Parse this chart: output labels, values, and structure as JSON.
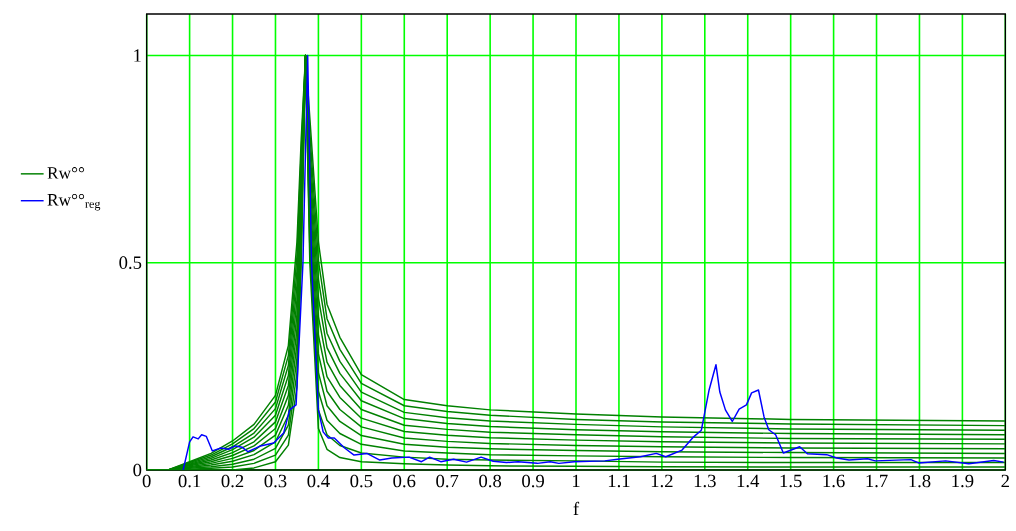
{
  "chart_data": {
    "type": "line",
    "xlabel": "f",
    "xlim": [
      0,
      2
    ],
    "ylim": [
      0,
      1.1
    ],
    "xticks": [
      0,
      0.1,
      0.2,
      0.3,
      0.4,
      0.5,
      0.6,
      0.7,
      0.8,
      0.9,
      1,
      1.1,
      1.2,
      1.3,
      1.4,
      1.5,
      1.6,
      1.7,
      1.8,
      1.9,
      2
    ],
    "yticks": [
      0,
      0.5,
      1
    ],
    "grid": true,
    "legend": "left",
    "x": [
      0,
      0.05,
      0.1,
      0.15,
      0.2,
      0.25,
      0.3,
      0.33,
      0.35,
      0.36,
      0.37,
      0.38,
      0.4,
      0.42,
      0.45,
      0.5,
      0.6,
      0.7,
      0.8,
      1.0,
      1.2,
      1.5,
      2.0
    ],
    "series": [
      {
        "name": "Rw°°",
        "color": "#008000",
        "values": [
          0,
          0,
          0.02,
          0.04,
          0.07,
          0.11,
          0.18,
          0.3,
          0.55,
          0.8,
          1,
          0.85,
          0.55,
          0.4,
          0.32,
          0.23,
          0.17,
          0.155,
          0.145,
          0.135,
          0.128,
          0.122,
          0.118
        ]
      },
      {
        "color": "#008000",
        "values": [
          0,
          0,
          0.018,
          0.036,
          0.063,
          0.1,
          0.164,
          0.276,
          0.515,
          0.77,
          1,
          0.815,
          0.505,
          0.365,
          0.291,
          0.209,
          0.155,
          0.141,
          0.132,
          0.122,
          0.116,
          0.111,
          0.107
        ]
      },
      {
        "color": "#008000",
        "values": [
          0,
          0,
          0.016,
          0.032,
          0.056,
          0.089,
          0.148,
          0.252,
          0.48,
          0.74,
          1,
          0.78,
          0.46,
          0.33,
          0.262,
          0.188,
          0.139,
          0.126,
          0.118,
          0.11,
          0.104,
          0.099,
          0.096
        ]
      },
      {
        "color": "#008000",
        "values": [
          0,
          0,
          0.014,
          0.028,
          0.049,
          0.079,
          0.132,
          0.228,
          0.445,
          0.71,
          1,
          0.745,
          0.415,
          0.295,
          0.233,
          0.167,
          0.124,
          0.112,
          0.105,
          0.097,
          0.092,
          0.088,
          0.085
        ]
      },
      {
        "color": "#008000",
        "values": [
          0,
          0,
          0.012,
          0.024,
          0.042,
          0.068,
          0.116,
          0.204,
          0.41,
          0.68,
          1,
          0.71,
          0.37,
          0.26,
          0.204,
          0.146,
          0.108,
          0.098,
          0.091,
          0.085,
          0.08,
          0.076,
          0.074
        ]
      },
      {
        "color": "#008000",
        "values": [
          0,
          0,
          0.01,
          0.02,
          0.035,
          0.058,
          0.1,
          0.18,
          0.375,
          0.65,
          1,
          0.675,
          0.325,
          0.225,
          0.175,
          0.125,
          0.093,
          0.084,
          0.078,
          0.072,
          0.068,
          0.065,
          0.063
        ]
      },
      {
        "color": "#008000",
        "values": [
          0,
          0,
          0.008,
          0.016,
          0.028,
          0.047,
          0.084,
          0.156,
          0.34,
          0.62,
          1,
          0.64,
          0.28,
          0.19,
          0.146,
          0.104,
          0.077,
          0.069,
          0.064,
          0.059,
          0.056,
          0.053,
          0.051
        ]
      },
      {
        "color": "#008000",
        "values": [
          0,
          0,
          0.006,
          0.012,
          0.021,
          0.037,
          0.068,
          0.132,
          0.305,
          0.59,
          1,
          0.605,
          0.235,
          0.155,
          0.117,
          0.083,
          0.062,
          0.055,
          0.051,
          0.047,
          0.044,
          0.042,
          0.04
        ]
      },
      {
        "color": "#008000",
        "values": [
          0,
          0,
          0.004,
          0.008,
          0.014,
          0.026,
          0.052,
          0.108,
          0.27,
          0.56,
          1,
          0.57,
          0.19,
          0.12,
          0.088,
          0.062,
          0.046,
          0.041,
          0.037,
          0.034,
          0.032,
          0.03,
          0.029
        ]
      },
      {
        "color": "#008000",
        "values": [
          0,
          0,
          0.002,
          0.004,
          0.007,
          0.016,
          0.036,
          0.084,
          0.235,
          0.53,
          1,
          0.535,
          0.145,
          0.085,
          0.059,
          0.041,
          0.031,
          0.026,
          0.024,
          0.022,
          0.019,
          0.018,
          0.018
        ]
      },
      {
        "color": "#008000",
        "values": [
          0,
          0,
          0,
          0,
          0,
          0.005,
          0.02,
          0.06,
          0.2,
          0.5,
          1,
          0.5,
          0.1,
          0.05,
          0.03,
          0.02,
          0.015,
          0.012,
          0.01,
          0.009,
          0.008,
          0.007,
          0.007
        ]
      },
      {
        "name": "Rw°°$_{reg}$",
        "color": "#0000ff",
        "x": [
          0.085,
          0.1,
          0.108,
          0.12,
          0.128,
          0.139,
          0.153,
          0.173,
          0.191,
          0.207,
          0.222,
          0.236,
          0.265,
          0.296,
          0.319,
          0.333,
          0.348,
          0.364,
          0.375,
          0.384,
          0.4,
          0.411,
          0.423,
          0.437,
          0.461,
          0.483,
          0.513,
          0.543,
          0.571,
          0.611,
          0.64,
          0.659,
          0.685,
          0.715,
          0.745,
          0.779,
          0.807,
          0.838,
          0.865,
          0.91,
          0.94,
          0.96,
          0.996,
          1.067,
          1.097,
          1.15,
          1.187,
          1.209,
          1.247,
          1.274,
          1.292,
          1.31,
          1.326,
          1.335,
          1.348,
          1.364,
          1.38,
          1.397,
          1.409,
          1.425,
          1.438,
          1.449,
          1.465,
          1.483,
          1.521,
          1.539,
          1.584,
          1.607,
          1.636,
          1.679,
          1.697,
          1.78,
          1.798,
          1.861,
          1.915,
          1.973,
          1.996
        ],
        "values": [
          0,
          0.068,
          0.08,
          0.075,
          0.085,
          0.081,
          0.046,
          0.053,
          0.05,
          0.058,
          0.055,
          0.044,
          0.058,
          0.065,
          0.089,
          0.145,
          0.157,
          0.5,
          1.0,
          0.5,
          0.145,
          0.092,
          0.077,
          0.077,
          0.053,
          0.036,
          0.04,
          0.024,
          0.029,
          0.031,
          0.02,
          0.031,
          0.02,
          0.026,
          0.019,
          0.031,
          0.021,
          0.018,
          0.02,
          0.016,
          0.02,
          0.016,
          0.02,
          0.022,
          0.026,
          0.032,
          0.04,
          0.032,
          0.048,
          0.08,
          0.096,
          0.193,
          0.254,
          0.188,
          0.145,
          0.117,
          0.147,
          0.157,
          0.186,
          0.193,
          0.128,
          0.097,
          0.085,
          0.041,
          0.056,
          0.039,
          0.037,
          0.029,
          0.024,
          0.027,
          0.022,
          0.025,
          0.017,
          0.022,
          0.015,
          0.023,
          0.019
        ]
      }
    ]
  }
}
